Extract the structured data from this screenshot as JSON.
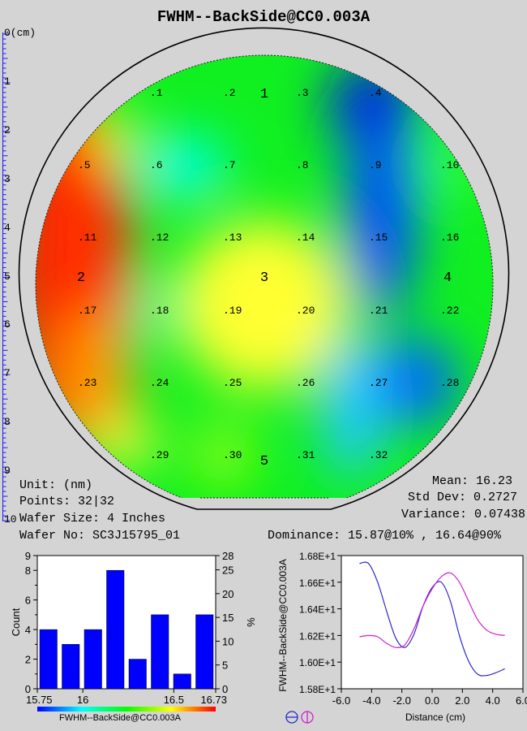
{
  "title": "FWHM--BackSide@CC0.003A",
  "ruler": {
    "ticks": [
      "0(cm)",
      "1",
      "2",
      "3",
      "4",
      "5",
      "6",
      "7",
      "8",
      "9",
      "10"
    ],
    "color": "#1a1aff"
  },
  "wafer_map": {
    "points": [
      {
        "id": 1,
        "label": ".1"
      },
      {
        "id": 2,
        "label": ".2"
      },
      {
        "id": 3,
        "label": ".3"
      },
      {
        "id": 4,
        "label": ".4"
      },
      {
        "id": 5,
        "label": ".5"
      },
      {
        "id": 6,
        "label": ".6"
      },
      {
        "id": 7,
        "label": ".7"
      },
      {
        "id": 8,
        "label": ".8"
      },
      {
        "id": 9,
        "label": ".9"
      },
      {
        "id": 10,
        "label": ".10"
      },
      {
        "id": 11,
        "label": ".11"
      },
      {
        "id": 12,
        "label": ".12"
      },
      {
        "id": 13,
        "label": ".13"
      },
      {
        "id": 14,
        "label": ".14"
      },
      {
        "id": 15,
        "label": ".15"
      },
      {
        "id": 16,
        "label": ".16"
      },
      {
        "id": 17,
        "label": ".17"
      },
      {
        "id": 18,
        "label": ".18"
      },
      {
        "id": 19,
        "label": ".19"
      },
      {
        "id": 20,
        "label": ".20"
      },
      {
        "id": 21,
        "label": ".21"
      },
      {
        "id": 22,
        "label": ".22"
      },
      {
        "id": 23,
        "label": ".23"
      },
      {
        "id": 24,
        "label": ".24"
      },
      {
        "id": 25,
        "label": ".25"
      },
      {
        "id": 26,
        "label": ".26"
      },
      {
        "id": 27,
        "label": ".27"
      },
      {
        "id": 28,
        "label": ".28"
      },
      {
        "id": 29,
        "label": ".29"
      },
      {
        "id": 30,
        "label": ".30"
      },
      {
        "id": 31,
        "label": ".31"
      },
      {
        "id": 32,
        "label": ".32"
      }
    ],
    "regions": [
      "1",
      "2",
      "3",
      "4",
      "5"
    ],
    "colorscale": [
      "#0000ff",
      "#00ffff",
      "#00ff00",
      "#ffff00",
      "#ff0000"
    ]
  },
  "info": {
    "unit": "Unit: (nm)",
    "points": "Points: 32|32",
    "wafer_size": "Wafer Size: 4 Inches",
    "wafer_no": "Wafer No: SC3J15795_01",
    "mean": "Mean: 16.23",
    "std_dev": "Std Dev: 0.2727",
    "variance": "Variance: 0.07438",
    "dominance": "Dominance: 15.87@10% , 16.64@90%"
  },
  "chart_data": [
    {
      "type": "bar",
      "title": "",
      "xlabel": "FWHM--BackSide@CC0.003A",
      "ylabel": "Count",
      "y2label": "%",
      "x_ticks": [
        "15.75",
        "16",
        "16.5",
        "16.73"
      ],
      "y_ticks": [
        "0",
        "2",
        "4",
        "6",
        "8"
      ],
      "y_minor_ticks": [
        "1",
        "3",
        "5",
        "7"
      ],
      "y_top_tick": "9",
      "y2_ticks": [
        "0",
        "5",
        "10",
        "15",
        "20",
        "25"
      ],
      "y2_top_tick": "28",
      "ylim": [
        0,
        9
      ],
      "xlim": [
        15.75,
        16.73
      ],
      "bin_edges": [
        15.75,
        15.8725,
        15.995,
        16.1175,
        16.24,
        16.3625,
        16.485,
        16.6075,
        16.73
      ],
      "values": [
        4,
        3,
        4,
        8,
        2,
        5,
        1,
        5
      ],
      "bar_color": "#0000ff"
    },
    {
      "type": "line",
      "title": "",
      "xlabel": "Distance (cm)",
      "ylabel": "FWHM--BackSide@CC0.003A",
      "x_ticks": [
        "-6.0",
        "-4.0",
        "-2.0",
        "0.0",
        "2.0",
        "4.0",
        "6.0"
      ],
      "y_ticks": [
        "1.58E+1",
        "1.60E+1",
        "1.62E+1",
        "1.64E+1",
        "1.66E+1",
        "1.68E+1"
      ],
      "xlim": [
        -6.0,
        6.0
      ],
      "ylim": [
        15.8,
        16.8
      ],
      "series": [
        {
          "color": "#2a2acc",
          "x": [
            -4.8,
            -4.2,
            -3.6,
            -3.0,
            -2.4,
            -1.8,
            -1.2,
            -0.6,
            0.0,
            0.6,
            1.2,
            1.8,
            2.4,
            3.0,
            3.6,
            4.2,
            4.8
          ],
          "y": [
            16.74,
            16.74,
            16.6,
            16.38,
            16.18,
            16.11,
            16.21,
            16.42,
            16.56,
            16.6,
            16.46,
            16.2,
            16.01,
            15.91,
            15.9,
            15.92,
            15.95
          ]
        },
        {
          "color": "#cc22cc",
          "x": [
            -4.8,
            -4.2,
            -3.6,
            -3.0,
            -2.4,
            -1.8,
            -1.2,
            -0.6,
            0.0,
            0.6,
            1.2,
            1.8,
            2.4,
            3.0,
            3.6,
            4.2,
            4.8
          ],
          "y": [
            16.19,
            16.2,
            16.19,
            16.14,
            16.11,
            16.13,
            16.25,
            16.42,
            16.55,
            16.64,
            16.67,
            16.6,
            16.46,
            16.32,
            16.24,
            16.21,
            16.2
          ]
        }
      ]
    }
  ]
}
